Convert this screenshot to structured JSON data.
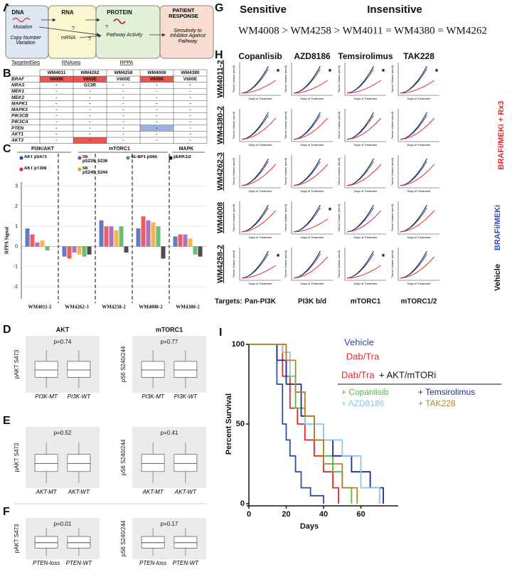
{
  "panel_a": {
    "letter": "A",
    "dna": "DNA",
    "rna": "RNA",
    "protein": "PROTEIN",
    "response": "PATIENT RESPONSE",
    "mutation": "Mutation",
    "cnv": "Copy Number Variation",
    "mrna": "mRNA",
    "pathway": "Pathway Activity",
    "sensitivity": "Sensitivity to Inhibitor Against Pathway",
    "q1": "?",
    "q2": "?",
    "q3": "?",
    "method_dna": "TargetedSeq",
    "method_rna": "RNAseq",
    "method_protein": "RPPA"
  },
  "panel_b": {
    "letter": "B",
    "columns": [
      "WM4011",
      "WM4262",
      "WM4258",
      "WM4008",
      "WM4380"
    ],
    "rows": [
      {
        "gene": "BRAF",
        "cells": [
          {
            "text": "V600K",
            "color": "#e9574f"
          },
          {
            "text": "V600E",
            "color": "#e9574f"
          },
          "V600E",
          {
            "text": "V600K",
            "color": "#e9574f"
          },
          "V600E"
        ]
      },
      {
        "gene": "NRAS",
        "cells": [
          "-",
          "G13R",
          "-",
          "-",
          "-"
        ]
      },
      {
        "gene": "MEK1",
        "cells": [
          "-",
          "-",
          "-",
          "-",
          "-"
        ]
      },
      {
        "gene": "MEK2",
        "cells": [
          "-",
          "-",
          "-",
          "-",
          "-"
        ]
      },
      {
        "gene": "MAPK1",
        "cells": [
          "-",
          "-",
          "-",
          "-",
          "-"
        ]
      },
      {
        "gene": "MAPK3",
        "cells": [
          "-",
          "-",
          "-",
          "-",
          "-"
        ]
      },
      {
        "gene": "PIK3CB",
        "cells": [
          "-",
          "-",
          "-",
          "-",
          "-"
        ]
      },
      {
        "gene": "PIK3CA",
        "cells": [
          "-",
          "-",
          "-",
          "-",
          "-"
        ]
      },
      {
        "gene": "PTEN",
        "cells": [
          "-",
          "-",
          "-",
          {
            "text": "-",
            "color": "#9bb3e0"
          },
          "-"
        ]
      },
      {
        "gene": "AKT1",
        "cells": [
          "-",
          "-",
          "-",
          "-",
          "-"
        ]
      },
      {
        "gene": "AKT3",
        "cells": [
          "-",
          {
            "text": "-",
            "color": "#e9574f"
          },
          "-",
          "-",
          "-"
        ]
      }
    ]
  },
  "panel_c": {
    "letter": "C",
    "groups": [
      "PI3K/AKT",
      "mTORC1",
      "MAPK"
    ],
    "ylabel": "RPPA Signal",
    "ylim": [
      -2.6,
      3.2
    ],
    "yticks": [
      3,
      2,
      1,
      0,
      -1,
      -2
    ],
    "grid": true,
    "categories": [
      "WM4011-2",
      "WM4262-3",
      "WM4258-2",
      "WM4008-2",
      "WM4380-2"
    ],
    "series": [
      {
        "name": "AKT pS473",
        "color": "#2b4fa8",
        "values": [
          0.9,
          -0.5,
          1.3,
          0.9,
          0.5
        ]
      },
      {
        "name": "AKT pT308",
        "color": "#e8262a",
        "values": [
          0.6,
          -0.6,
          1.0,
          1.5,
          0.6
        ]
      },
      {
        "name": "S6 pS235_S236",
        "color": "#8e44ad",
        "values": [
          0.2,
          -0.3,
          1.0,
          1.3,
          0.6
        ]
      },
      {
        "name": "S6 pS240_S244",
        "color": "#f39c12",
        "values": [
          0.3,
          -0.4,
          0.8,
          1.2,
          0.4
        ]
      },
      {
        "name": "4E-BP1 pS65",
        "color": "#3aa845",
        "values": [
          -0.2,
          -0.5,
          1.0,
          1.0,
          -0.4
        ]
      },
      {
        "name": "pERK1/2",
        "color": "#111111",
        "values": [
          0.0,
          -0.4,
          -0.3,
          -0.6,
          -0.5
        ]
      }
    ]
  },
  "panel_d": {
    "letter": "D",
    "titles": [
      "AKT",
      "mTORC1"
    ],
    "plots": [
      {
        "ylabel": "pAKT S473",
        "p": "p=0.74",
        "categories": [
          "PI3K-MT",
          "PI3K-WT"
        ]
      },
      {
        "ylabel": "pS6 S240/244",
        "p": "p=0.77",
        "categories": [
          "PI3K-MT",
          "PI3K-WT"
        ]
      }
    ]
  },
  "panel_e": {
    "letter": "E",
    "plots": [
      {
        "ylabel": "pAKT S473",
        "p": "p=0.52",
        "categories": [
          "AKT-MT",
          "AKT-WT"
        ]
      },
      {
        "ylabel": "pS6 S240/244",
        "p": "p=0.41",
        "categories": [
          "AKT-MT",
          "AKT-WT"
        ]
      }
    ]
  },
  "panel_f": {
    "letter": "F",
    "plots": [
      {
        "ylabel": "pAKT S473",
        "p": "p=0.01",
        "categories": [
          "PTEN-loss",
          "PTEN-WT"
        ]
      },
      {
        "ylabel": "pS6 S240/244",
        "p": "p=0.17",
        "categories": [
          "PTEN-loss",
          "PTEN-WT"
        ]
      }
    ]
  },
  "panel_g": {
    "letter": "G",
    "sensitive": "Sensitive",
    "insensitive": "Insensitive",
    "ranking": "WM4008 > WM4258 > WM4011 = WM4380 = WM4262"
  },
  "panel_h": {
    "letter": "H",
    "drugs": [
      "Copanlisib",
      "AZD8186",
      "Temsirolimus",
      "TAK228"
    ],
    "models": [
      "WM4011-2",
      "WM4380-2",
      "WM4262-3",
      "WM4008",
      "WM4258-2"
    ],
    "targets_label": "Targets:",
    "targets": [
      "Pan-PI3K",
      "PI3K b/d",
      "mTORC1",
      "mTORC1/2"
    ],
    "ylabel": "Tumor Volume (mm3)",
    "xlabel": "Days of Treatment",
    "star": "*",
    "significant": [
      [
        true,
        true,
        true,
        true
      ],
      [
        false,
        false,
        false,
        false
      ],
      [
        false,
        false,
        false,
        false
      ],
      [
        false,
        true,
        false,
        false
      ],
      [
        true,
        false,
        true,
        false
      ]
    ],
    "legend": [
      {
        "name": "Vehicle",
        "color": "#111111"
      },
      {
        "name": "BRAFi/MEKi",
        "color": "#2b4fa8"
      },
      {
        "name": "BRAFi/MEKi + Rx3",
        "color": "#e8262a"
      }
    ]
  },
  "panel_i": {
    "letter": "I",
    "ylabel": "Percent Survival",
    "xlabel": "Days",
    "xlim": [
      0,
      80
    ],
    "xticks": [
      0,
      20,
      40,
      60
    ],
    "ylim": [
      0,
      100
    ],
    "yticks": [
      0,
      50,
      100
    ],
    "combo_prefix": "Dab/Tra",
    "combo_suffix": "+ AKT/mTORi",
    "series": [
      {
        "name": "Vehicle",
        "color": "#2b4fa8",
        "x": [
          0,
          15,
          18,
          20,
          22,
          25,
          28,
          33,
          40
        ],
        "y": [
          100,
          75,
          50,
          40,
          30,
          20,
          10,
          5,
          0
        ]
      },
      {
        "name": "Dab/Tra",
        "color": "#e8262a",
        "x": [
          0,
          18,
          22,
          26,
          30,
          35,
          40,
          45,
          48
        ],
        "y": [
          100,
          80,
          60,
          50,
          40,
          30,
          20,
          10,
          0
        ]
      },
      {
        "name": "+ Copanlisib",
        "color": "#4fb848",
        "x": [
          0,
          20,
          25,
          30,
          35,
          40,
          45,
          50,
          55
        ],
        "y": [
          100,
          80,
          60,
          50,
          40,
          30,
          20,
          10,
          0
        ]
      },
      {
        "name": "+ Temsirolimus",
        "color": "#1f2d8a",
        "x": [
          0,
          15,
          20,
          28,
          35,
          45,
          55,
          65,
          72
        ],
        "y": [
          100,
          90,
          75,
          55,
          40,
          30,
          20,
          10,
          0
        ]
      },
      {
        "name": "+ AZD8186",
        "color": "#8cc3ea",
        "x": [
          0,
          18,
          22,
          25,
          30,
          40,
          50,
          60,
          70
        ],
        "y": [
          100,
          95,
          80,
          70,
          50,
          40,
          30,
          10,
          0
        ]
      },
      {
        "name": "+ TAK228",
        "color": "#b5832a",
        "x": [
          0,
          20,
          25,
          30,
          35,
          40,
          50,
          58
        ],
        "y": [
          100,
          90,
          70,
          55,
          40,
          25,
          10,
          0
        ]
      }
    ]
  }
}
